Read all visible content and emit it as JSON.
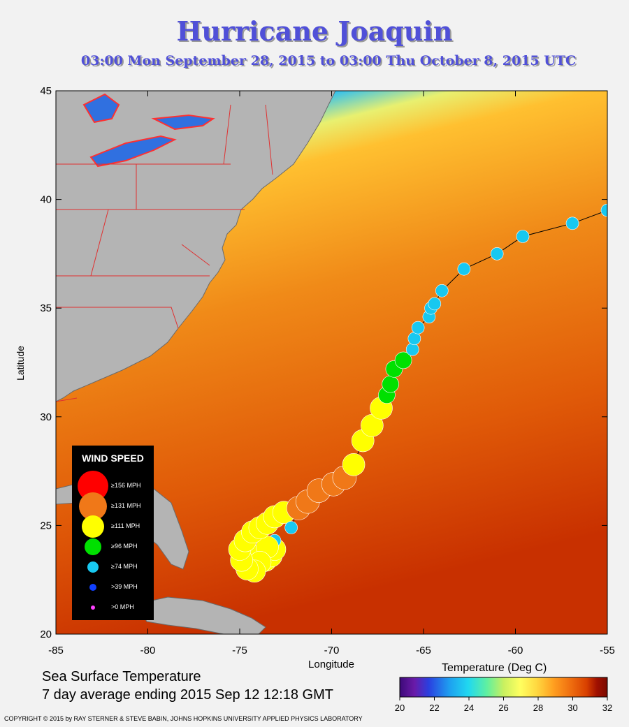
{
  "title": "Hurricane Joaquin",
  "subtitle": "03:00 Mon September 28, 2015 to 03:00 Thu October  8, 2015  UTC",
  "map": {
    "lon_range": [
      -85,
      -55
    ],
    "lat_range": [
      20,
      45
    ],
    "x_ticks": [
      "-85",
      "-80",
      "-75",
      "-70",
      "-65",
      "-60",
      "-55"
    ],
    "y_ticks": [
      "20",
      "25",
      "30",
      "35",
      "40",
      "45"
    ],
    "xlabel": "Longitude",
    "ylabel": "Latitude"
  },
  "legend": {
    "title": "WIND SPEED",
    "items": [
      {
        "label": "≥156 MPH",
        "color": "#ff0000"
      },
      {
        "label": "≥131 MPH",
        "color": "#f07818"
      },
      {
        "label": "≥111 MPH",
        "color": "#ffff00"
      },
      {
        "label": "≥96 MPH",
        "color": "#00e000"
      },
      {
        "label": "≥74 MPH",
        "color": "#18c8f0"
      },
      {
        "label": ">39 MPH",
        "color": "#1040ff"
      },
      {
        "label": ">0 MPH",
        "color": "#ff40ff"
      }
    ]
  },
  "sst_caption": {
    "line1": "Sea Surface Temperature",
    "line2": "7 day average ending 2015 Sep 12 12:18 GMT"
  },
  "colorbar": {
    "label": "Temperature (Deg C)",
    "ticks": [
      "20",
      "22",
      "24",
      "26",
      "28",
      "30",
      "32"
    ],
    "colors": [
      "#3c0a78",
      "#6a1aa8",
      "#2a40e0",
      "#1ea0f0",
      "#20d8f0",
      "#60f0a0",
      "#c8f060",
      "#ffff60",
      "#ffd840",
      "#ffa020",
      "#f07010",
      "#d84000",
      "#a01000",
      "#7a0a00"
    ]
  },
  "copyright": "COPYRIGHT © 2015 by RAY STERNER & STEVE BABIN, JOHNS HOPKINS UNIVERSITY APPLIED PHYSICS LABORATORY",
  "track": [
    {
      "lon": -73.9,
      "lat": 23.6,
      "cat": "≥111 MPH"
    },
    {
      "lon": -73.6,
      "lat": 23.4,
      "cat": "≥111 MPH"
    },
    {
      "lon": -73.3,
      "lat": 23.6,
      "cat": "≥111 MPH"
    },
    {
      "lon": -73.1,
      "lat": 23.9,
      "cat": "≥111 MPH"
    },
    {
      "lon": -73.1,
      "lat": 24.3,
      "cat": "≥74 MPH"
    },
    {
      "lon": -73.5,
      "lat": 24.0,
      "cat": "≥111 MPH"
    },
    {
      "lon": -73.9,
      "lat": 23.3,
      "cat": "≥111 MPH"
    },
    {
      "lon": -74.2,
      "lat": 22.9,
      "cat": "≥111 MPH"
    },
    {
      "lon": -74.6,
      "lat": 23.0,
      "cat": "≥111 MPH"
    },
    {
      "lon": -74.9,
      "lat": 23.4,
      "cat": "≥111 MPH"
    },
    {
      "lon": -75.0,
      "lat": 23.9,
      "cat": "≥111 MPH"
    },
    {
      "lon": -74.7,
      "lat": 24.3,
      "cat": "≥111 MPH"
    },
    {
      "lon": -74.3,
      "lat": 24.7,
      "cat": "≥111 MPH"
    },
    {
      "lon": -73.9,
      "lat": 24.9,
      "cat": "≥111 MPH"
    },
    {
      "lon": -73.5,
      "lat": 25.1,
      "cat": "≥111 MPH"
    },
    {
      "lon": -73.1,
      "lat": 25.4,
      "cat": "≥111 MPH"
    },
    {
      "lon": -72.6,
      "lat": 25.6,
      "cat": "≥111 MPH"
    },
    {
      "lon": -72.2,
      "lat": 24.9,
      "cat": "≥74 MPH"
    },
    {
      "lon": -71.8,
      "lat": 25.8,
      "cat": "≥131 MPH"
    },
    {
      "lon": -71.3,
      "lat": 26.1,
      "cat": "≥131 MPH"
    },
    {
      "lon": -70.7,
      "lat": 26.6,
      "cat": "≥131 MPH"
    },
    {
      "lon": -69.9,
      "lat": 26.9,
      "cat": "≥131 MPH"
    },
    {
      "lon": -69.3,
      "lat": 27.2,
      "cat": "≥131 MPH"
    },
    {
      "lon": -68.8,
      "lat": 27.4,
      "cat": ">0 MPH"
    },
    {
      "lon": -68.8,
      "lat": 27.8,
      "cat": "≥111 MPH"
    },
    {
      "lon": -68.3,
      "lat": 28.9,
      "cat": "≥111 MPH"
    },
    {
      "lon": -67.8,
      "lat": 29.6,
      "cat": "≥111 MPH"
    },
    {
      "lon": -67.3,
      "lat": 30.4,
      "cat": "≥111 MPH"
    },
    {
      "lon": -67.0,
      "lat": 31.0,
      "cat": "≥96 MPH"
    },
    {
      "lon": -66.8,
      "lat": 31.5,
      "cat": "≥96 MPH"
    },
    {
      "lon": -66.6,
      "lat": 32.2,
      "cat": "≥96 MPH"
    },
    {
      "lon": -66.1,
      "lat": 32.6,
      "cat": "≥96 MPH"
    },
    {
      "lon": -65.6,
      "lat": 33.1,
      "cat": "≥74 MPH"
    },
    {
      "lon": -65.5,
      "lat": 33.6,
      "cat": "≥74 MPH"
    },
    {
      "lon": -65.3,
      "lat": 34.1,
      "cat": "≥74 MPH"
    },
    {
      "lon": -64.7,
      "lat": 34.6,
      "cat": "≥74 MPH"
    },
    {
      "lon": -64.6,
      "lat": 35.0,
      "cat": "≥74 MPH"
    },
    {
      "lon": -64.4,
      "lat": 35.2,
      "cat": "≥74 MPH"
    },
    {
      "lon": -64.0,
      "lat": 35.8,
      "cat": "≥74 MPH"
    },
    {
      "lon": -62.8,
      "lat": 36.8,
      "cat": "≥74 MPH"
    },
    {
      "lon": -61.0,
      "lat": 37.5,
      "cat": "≥74 MPH"
    },
    {
      "lon": -59.6,
      "lat": 38.3,
      "cat": "≥74 MPH"
    },
    {
      "lon": -56.9,
      "lat": 38.9,
      "cat": "≥74 MPH"
    },
    {
      "lon": -55.0,
      "lat": 39.5,
      "cat": "≥74 MPH"
    }
  ]
}
